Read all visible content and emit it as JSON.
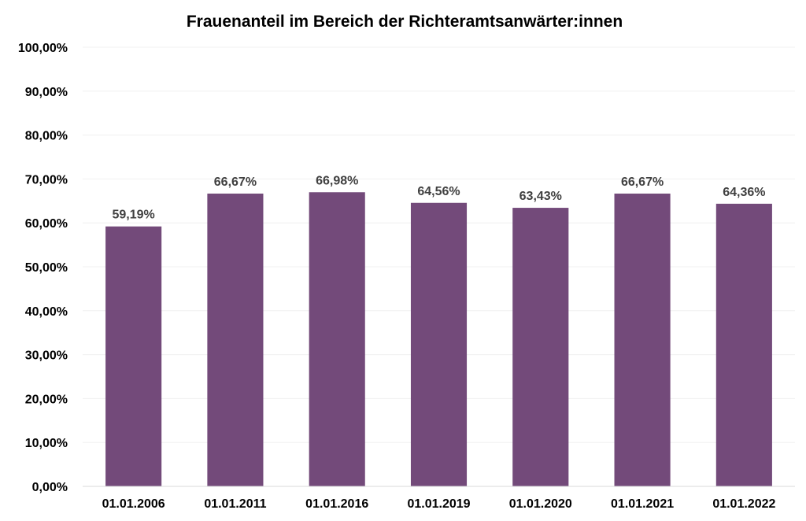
{
  "chart_data": {
    "type": "bar",
    "title": "Frauenanteil im Bereich der Richteramtsanwärter:innen",
    "categories": [
      "01.01.2006",
      "01.01.2011",
      "01.01.2016",
      "01.01.2019",
      "01.01.2020",
      "01.01.2021",
      "01.01.2022"
    ],
    "values": [
      59.19,
      66.67,
      66.98,
      64.56,
      63.43,
      66.67,
      64.36
    ],
    "value_labels": [
      "59,19%",
      "66,67%",
      "66,98%",
      "64,56%",
      "63,43%",
      "66,67%",
      "64,36%"
    ],
    "ylim": [
      0,
      100
    ],
    "yticks": [
      0,
      10,
      20,
      30,
      40,
      50,
      60,
      70,
      80,
      90,
      100
    ],
    "ytick_labels": [
      "0,00%",
      "10,00%",
      "20,00%",
      "30,00%",
      "40,00%",
      "50,00%",
      "60,00%",
      "70,00%",
      "80,00%",
      "90,00%",
      "100,00%"
    ],
    "grid": true,
    "bar_color": "#734a7a",
    "xlabel": "",
    "ylabel": ""
  }
}
